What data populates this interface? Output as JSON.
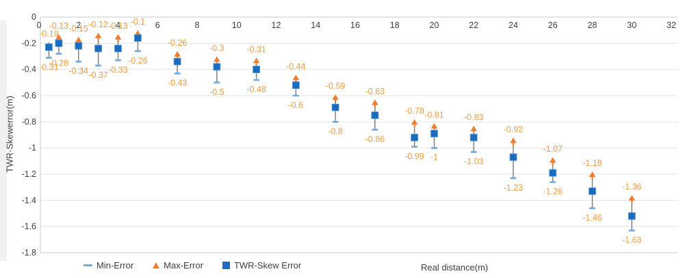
{
  "axes": {
    "y_title": "TWR-Skewerror(m)",
    "x_title": "Real distance(m)",
    "y_ticks": [
      "0",
      "-0.2",
      "-0.4",
      "-0.6",
      "-0.8",
      "-1",
      "-1.2",
      "-1.4",
      "-1.6",
      "-1.8"
    ],
    "x_ticks": [
      "0",
      "2",
      "4",
      "6",
      "8",
      "10",
      "12",
      "14",
      "16",
      "18",
      "20",
      "22",
      "24",
      "26",
      "28",
      "30",
      "32"
    ]
  },
  "legend": {
    "min_label": "Min-Error",
    "max_label": "Max-Error",
    "twr_label": "TWR-Skew Error"
  },
  "colors": {
    "max_series": "#ED7D31",
    "data_label": "#F09C44",
    "twr_square": "#1B6CBE",
    "twr_square_border": "#5B9BD5",
    "min_dash": "#74A9DB",
    "error_bar": "#808080",
    "gridline": "#E5E5E5",
    "axis_line": "#C8C8C8",
    "tick_text": "#3d3d3d"
  },
  "chart_data": {
    "type": "scatter",
    "title": "",
    "xlabel": "Real distance(m)",
    "ylabel": "TWR-Skewerror(m)",
    "xlim": [
      0,
      32
    ],
    "ylim": [
      -1.8,
      0
    ],
    "grid": true,
    "legend_position": "bottom-left",
    "x": [
      0.5,
      1,
      2,
      3,
      4,
      5,
      7,
      9,
      11,
      13,
      15,
      17,
      19,
      20,
      22,
      24,
      26,
      28,
      30
    ],
    "series": [
      {
        "name": "Min-Error",
        "marker": "dash",
        "values": [
          -0.31,
          -0.28,
          -0.34,
          -0.37,
          -0.33,
          -0.26,
          -0.43,
          -0.5,
          -0.48,
          -0.6,
          -0.8,
          -0.86,
          -0.99,
          -1,
          -1.03,
          -1.23,
          -1.26,
          -1.46,
          -1.63
        ],
        "labels": [
          "-0.31",
          "-0.28",
          "-0.34",
          "-0.37",
          "-0.33",
          "-0.26",
          "-0.43",
          "-0.5",
          "-0.48",
          "-0.6",
          "-0.8",
          "-0.86",
          "-0.99",
          "-1",
          "-1.03",
          "-1.23",
          "-1.26",
          "-1.46",
          "-1.63"
        ]
      },
      {
        "name": "Max-Error",
        "marker": "triangle-up",
        "values": [
          -0.19,
          -0.13,
          -0.15,
          -0.12,
          -0.13,
          -0.1,
          -0.26,
          -0.3,
          -0.31,
          -0.44,
          -0.59,
          -0.63,
          -0.78,
          -0.81,
          -0.83,
          -0.92,
          -1.07,
          -1.18,
          -1.36
        ],
        "labels": [
          "-0.19",
          "-0.13",
          "-0.15",
          "-0.12",
          "-0.13",
          "-0.1",
          "-0.26",
          "-0.3",
          "-0.31",
          "-0.44",
          "-0.59",
          "-0.63",
          "-0.78",
          "-0.81",
          "-0.83",
          "-0.92",
          "-1.07",
          "-1.18",
          "-1.36"
        ]
      },
      {
        "name": "TWR-Skew Error",
        "marker": "square",
        "values_estimated_from_pixels": true,
        "values": [
          -0.23,
          -0.2,
          -0.22,
          -0.24,
          -0.24,
          -0.16,
          -0.34,
          -0.38,
          -0.4,
          -0.52,
          -0.69,
          -0.75,
          -0.92,
          -0.89,
          -0.92,
          -1.07,
          -1.19,
          -1.33,
          -1.52
        ],
        "labels": null
      }
    ]
  }
}
